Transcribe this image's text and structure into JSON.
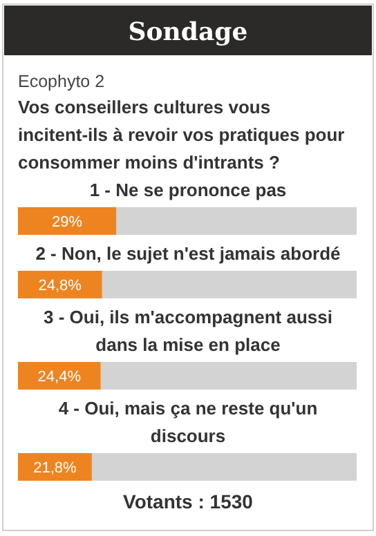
{
  "chart_data": {
    "type": "bar",
    "orientation": "horizontal",
    "title": "Sondage",
    "subtitle": "Ecophyto 2",
    "annotations": [
      "Vos conseillers cultures vous incitent-ils à revoir vos pratiques pour consommer moins d'intrants ?",
      "Votants : 1530"
    ],
    "categories": [
      "1 - Ne se prononce pas",
      "2 - Non, le sujet n'est jamais abordé",
      "3 - Oui, ils m'accompagnent aussi dans la mise en place",
      "4 - Oui, mais ça ne reste qu'un discours"
    ],
    "values": [
      29,
      24.8,
      24.4,
      21.8
    ],
    "value_labels": [
      "29%",
      "24,8%",
      "24,4%",
      "21,8%"
    ],
    "color": "#ee8420",
    "xlim": [
      0,
      100
    ]
  }
}
